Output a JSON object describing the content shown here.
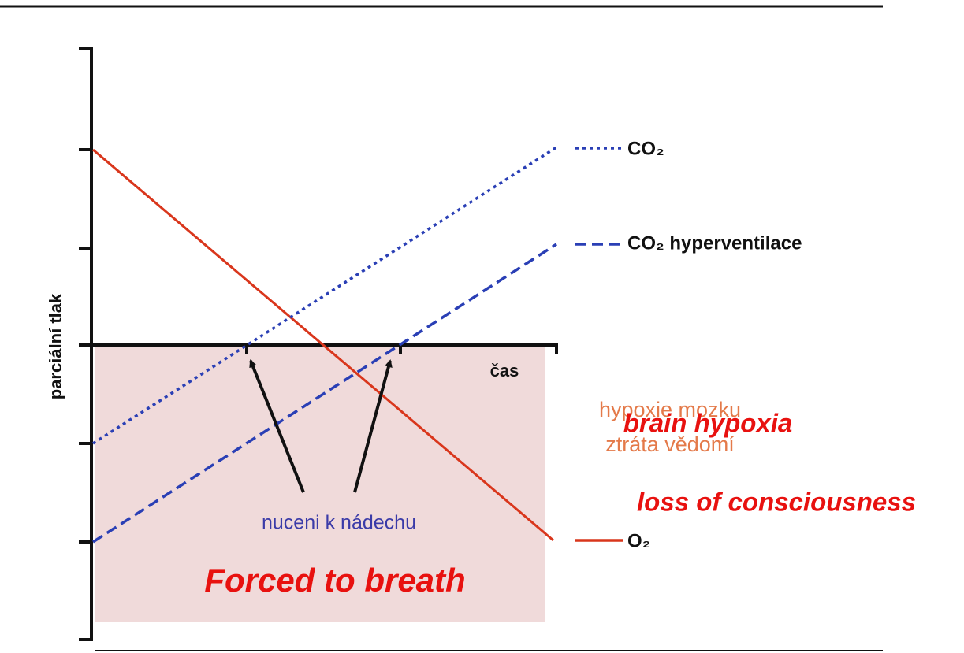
{
  "diagram": {
    "y_axis_label": "parciální tlak",
    "x_axis_label": "čas",
    "legend": [
      "CO₂",
      "CO₂ hyperventilace",
      "O₂"
    ],
    "zone_labels": [
      "hypoxie mozku",
      "ztráta vědomí"
    ],
    "zone_labels_en": [
      "brain hypoxia",
      "loss of consciousness"
    ],
    "arrow_label": "nuceni k nádechu",
    "arrow_label_en": "Forced to breath"
  }
}
